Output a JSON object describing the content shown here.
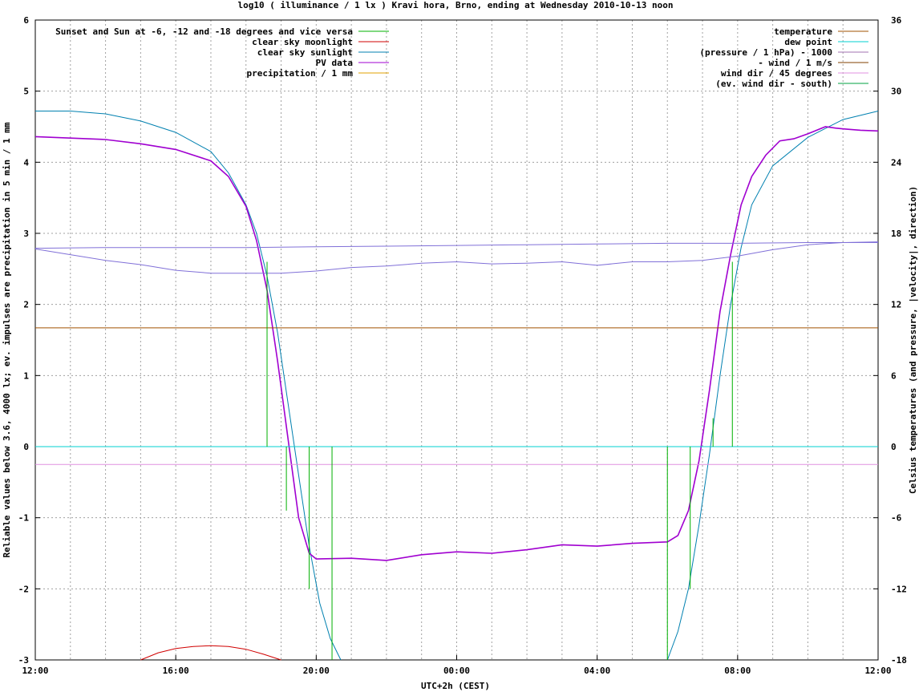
{
  "chart_data": {
    "type": "line",
    "title": "log10 ( illuminance / 1 lx ) Kravi hora, Brno, ending at Wednesday 2010-10-13 noon",
    "xlabel": "UTC+2h (CEST)",
    "ylabel": "Reliable values below 3.6, 4000 lx; ev. impulses are precipitation in 5 min / 1 mm",
    "y2label": "Celsius temperatures (and pressure, |velocity|, direction)",
    "xlim": [
      0,
      24
    ],
    "ylim": [
      -3,
      6
    ],
    "y2lim": [
      -18,
      36
    ],
    "grid": true,
    "x_ticks": [
      {
        "pos": 0,
        "label": "12:00"
      },
      {
        "pos": 4,
        "label": "16:00"
      },
      {
        "pos": 8,
        "label": "20:00"
      },
      {
        "pos": 12,
        "label": "00:00"
      },
      {
        "pos": 16,
        "label": "04:00"
      },
      {
        "pos": 20,
        "label": "08:00"
      },
      {
        "pos": 24,
        "label": "12:00"
      }
    ],
    "y_ticks": [
      "-3",
      "-2",
      "-1",
      "0",
      "1",
      "2",
      "3",
      "4",
      "5",
      "6"
    ],
    "y2_ticks": [
      "-18",
      "-12",
      "-6",
      "0",
      "6",
      "12",
      "18",
      "24",
      "30",
      "36"
    ],
    "legend_left": [
      {
        "label": "Sunset and Sun at -6, -12 and -18 degrees and vice versa",
        "color": "#00b000"
      },
      {
        "label": "clear sky moonlight",
        "color": "#d00000"
      },
      {
        "label": "clear sky sunlight",
        "color": "#0080b0"
      },
      {
        "label": "PV data",
        "color": "#a000d0"
      },
      {
        "label": "precipitation / 1 mm",
        "color": "#e0a000"
      }
    ],
    "legend_right": [
      {
        "label": "temperature",
        "color": "#a05000"
      },
      {
        "label": "dew point",
        "color": "#00d0d0"
      },
      {
        "label": "(pressure / 1 hPa) - 1000",
        "color": "#a070b0"
      },
      {
        "label": "- wind / 1 m/s",
        "color": "#804000"
      },
      {
        "label": "wind dir / 45 degrees",
        "color": "#e090e0"
      },
      {
        "label": "(ev. wind dir - south)",
        "color": "#00a040"
      }
    ],
    "series": [
      {
        "name": "clear sky sunlight",
        "color": "#0080b0",
        "points": [
          [
            0,
            4.72
          ],
          [
            1,
            4.72
          ],
          [
            2,
            4.68
          ],
          [
            3,
            4.58
          ],
          [
            4,
            4.42
          ],
          [
            5,
            4.15
          ],
          [
            5.5,
            3.85
          ],
          [
            6,
            3.4
          ],
          [
            6.3,
            3.0
          ],
          [
            6.6,
            2.4
          ],
          [
            6.9,
            1.6
          ],
          [
            7.2,
            0.6
          ],
          [
            7.5,
            -0.4
          ],
          [
            7.8,
            -1.4
          ],
          [
            8.1,
            -2.2
          ],
          [
            8.4,
            -2.7
          ],
          [
            8.7,
            -3.0
          ]
        ]
      },
      {
        "name": "clear sky sunlight",
        "color": "#0080b0",
        "points": [
          [
            18.0,
            -3.0
          ],
          [
            18.3,
            -2.6
          ],
          [
            18.6,
            -2.0
          ],
          [
            18.9,
            -1.1
          ],
          [
            19.2,
            -0.1
          ],
          [
            19.5,
            1.0
          ],
          [
            19.8,
            2.0
          ],
          [
            20.1,
            2.8
          ],
          [
            20.4,
            3.4
          ],
          [
            21.0,
            3.95
          ],
          [
            22.0,
            4.35
          ],
          [
            23.0,
            4.6
          ],
          [
            24.0,
            4.72
          ]
        ]
      },
      {
        "name": "PV data",
        "color": "#a000d0",
        "points": [
          [
            0,
            4.36
          ],
          [
            1,
            4.34
          ],
          [
            2,
            4.32
          ],
          [
            3,
            4.26
          ],
          [
            4,
            4.18
          ],
          [
            5,
            4.02
          ],
          [
            5.5,
            3.8
          ],
          [
            6,
            3.38
          ],
          [
            6.3,
            2.9
          ],
          [
            6.6,
            2.2
          ],
          [
            6.9,
            1.2
          ],
          [
            7.2,
            0.1
          ],
          [
            7.5,
            -1.0
          ],
          [
            7.8,
            -1.5
          ],
          [
            8.0,
            -1.58
          ],
          [
            9,
            -1.57
          ],
          [
            10,
            -1.6
          ],
          [
            11,
            -1.52
          ],
          [
            12,
            -1.48
          ],
          [
            13,
            -1.5
          ],
          [
            14,
            -1.45
          ],
          [
            15,
            -1.38
          ],
          [
            16,
            -1.4
          ],
          [
            17,
            -1.36
          ],
          [
            18,
            -1.34
          ],
          [
            18.3,
            -1.25
          ],
          [
            18.6,
            -0.9
          ],
          [
            18.9,
            -0.2
          ],
          [
            19.2,
            0.8
          ],
          [
            19.5,
            1.9
          ],
          [
            19.8,
            2.7
          ],
          [
            20.1,
            3.4
          ],
          [
            20.4,
            3.8
          ],
          [
            20.8,
            4.1
          ],
          [
            21.2,
            4.3
          ],
          [
            21.6,
            4.33
          ],
          [
            22.0,
            4.4
          ],
          [
            22.5,
            4.5
          ],
          [
            22.8,
            4.48
          ],
          [
            23.0,
            4.47
          ],
          [
            23.5,
            4.45
          ],
          [
            24.0,
            4.44
          ]
        ]
      },
      {
        "name": "clear sky moonlight",
        "color": "#d00000",
        "points": [
          [
            3.0,
            -3.0
          ],
          [
            3.5,
            -2.9
          ],
          [
            4.0,
            -2.84
          ],
          [
            4.5,
            -2.81
          ],
          [
            5.0,
            -2.8
          ],
          [
            5.5,
            -2.81
          ],
          [
            6.0,
            -2.85
          ],
          [
            6.5,
            -2.92
          ],
          [
            7.0,
            -3.0
          ]
        ]
      },
      {
        "name": "(pressure / 1 hPa) - 1000",
        "color": "#8070d8",
        "points": [
          [
            0,
            2.79
          ],
          [
            2,
            2.8
          ],
          [
            4,
            2.8
          ],
          [
            6,
            2.8
          ],
          [
            8,
            2.81
          ],
          [
            10,
            2.82
          ],
          [
            12,
            2.83
          ],
          [
            14,
            2.84
          ],
          [
            16,
            2.85
          ],
          [
            18,
            2.86
          ],
          [
            20,
            2.86
          ],
          [
            22,
            2.87
          ],
          [
            24,
            2.87
          ]
        ]
      },
      {
        "name": "temperature",
        "color": "#8070d8",
        "points": [
          [
            0,
            2.78
          ],
          [
            1,
            2.7
          ],
          [
            2,
            2.62
          ],
          [
            3,
            2.56
          ],
          [
            4,
            2.48
          ],
          [
            5,
            2.44
          ],
          [
            6,
            2.44
          ],
          [
            7,
            2.44
          ],
          [
            8,
            2.47
          ],
          [
            9,
            2.52
          ],
          [
            10,
            2.54
          ],
          [
            11,
            2.58
          ],
          [
            12,
            2.6
          ],
          [
            13,
            2.57
          ],
          [
            14,
            2.58
          ],
          [
            15,
            2.6
          ],
          [
            16,
            2.55
          ],
          [
            17,
            2.6
          ],
          [
            18,
            2.6
          ],
          [
            19,
            2.62
          ],
          [
            20,
            2.68
          ],
          [
            21,
            2.77
          ],
          [
            22,
            2.84
          ],
          [
            23,
            2.87
          ],
          [
            24,
            2.88
          ]
        ]
      },
      {
        "name": "- wind / 1 m/s",
        "color": "#a05000",
        "points": [
          [
            0,
            1.67
          ],
          [
            24,
            1.67
          ]
        ]
      },
      {
        "name": "dew point",
        "color": "#00d0d0",
        "points": [
          [
            0,
            0.0
          ],
          [
            24,
            0.0
          ]
        ]
      },
      {
        "name": "wind dir / 45 degrees",
        "color": "#e090e0",
        "points": [
          [
            0,
            -0.25
          ],
          [
            24,
            -0.25
          ]
        ]
      }
    ],
    "impulses": {
      "name": "Sunset and Sun at -6, -12 and -18 degrees and vice versa",
      "color": "#00b000",
      "items": [
        {
          "x": 6.6,
          "y": 2.6
        },
        {
          "x": 7.15,
          "y": -0.9
        },
        {
          "x": 7.8,
          "y": -2.0
        },
        {
          "x": 8.45,
          "y": -3.0
        },
        {
          "x": 18.0,
          "y": -3.0
        },
        {
          "x": 18.65,
          "y": -2.0
        },
        {
          "x": 19.3,
          "y": 0.4
        },
        {
          "x": 19.85,
          "y": 2.6
        }
      ]
    }
  }
}
